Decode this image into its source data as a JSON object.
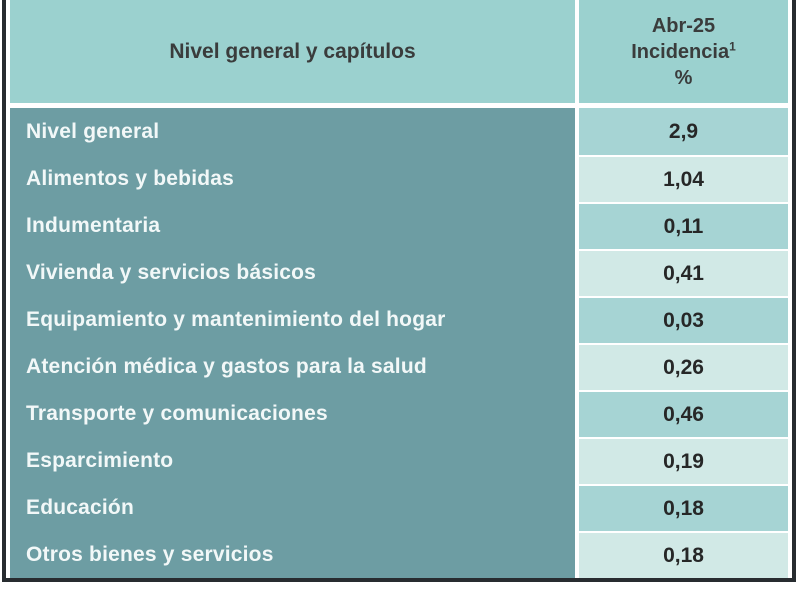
{
  "table": {
    "header": {
      "categories": "Nivel general y capítulos",
      "period": "Abr-25",
      "measure": "Incidencia",
      "footnote_mark": "1",
      "unit": "%"
    },
    "rows": [
      {
        "label": "Nivel general",
        "value": "2,9"
      },
      {
        "label": "Alimentos y bebidas",
        "value": "1,04"
      },
      {
        "label": "Indumentaria",
        "value": "0,11"
      },
      {
        "label": "Vivienda y servicios básicos",
        "value": "0,41"
      },
      {
        "label": "Equipamiento y mantenimiento del hogar",
        "value": "0,03"
      },
      {
        "label": "Atención médica y gastos para la salud",
        "value": "0,26"
      },
      {
        "label": "Transporte y comunicaciones",
        "value": "0,46"
      },
      {
        "label": "Esparcimiento",
        "value": "0,19"
      },
      {
        "label": "Educación",
        "value": "0,18"
      },
      {
        "label": "Otros bienes y servicios",
        "value": "0,18"
      }
    ]
  },
  "chart_data": {
    "type": "table",
    "title": "",
    "columns": [
      "Nivel general y capítulos",
      "Abr-25 Incidencia¹ %"
    ],
    "rows": [
      [
        "Nivel general",
        "2,9"
      ],
      [
        "Alimentos y bebidas",
        "1,04"
      ],
      [
        "Indumentaria",
        "0,11"
      ],
      [
        "Vivienda y servicios básicos",
        "0,41"
      ],
      [
        "Equipamiento y mantenimiento del hogar",
        "0,03"
      ],
      [
        "Atención médica y gastos para la salud",
        "0,26"
      ],
      [
        "Transporte y comunicaciones",
        "0,46"
      ],
      [
        "Esparcimiento",
        "0,19"
      ],
      [
        "Educación",
        "0,18"
      ],
      [
        "Otros bienes y servicios",
        "0,18"
      ]
    ],
    "values_numeric": [
      2.9,
      1.04,
      0.11,
      0.41,
      0.03,
      0.26,
      0.46,
      0.19,
      0.18,
      0.18
    ],
    "period": "Abr-25",
    "unit": "%"
  },
  "theme": {
    "page_bg": "#ffffff",
    "border_dark": "#282c30",
    "header_bg": "#9bd1cf",
    "labels_bg": "#6d9da3",
    "cell_medium": "#a6d4d4",
    "cell_light": "#d1e9e6",
    "header_text": "#3a3c3c",
    "value_text": "#262727",
    "label_text": "#f2f8f8"
  }
}
